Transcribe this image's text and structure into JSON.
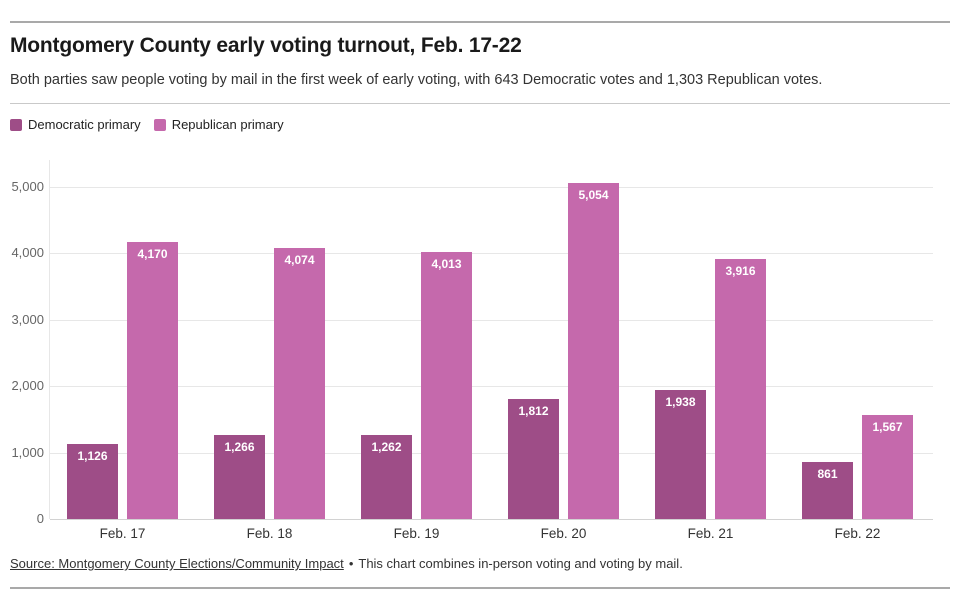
{
  "header": {
    "title": "Montgomery County early voting turnout, Feb. 17-22",
    "subtitle": "Both parties saw people voting by mail in the first week of early voting, with 643 Democratic votes and 1,303 Republican votes."
  },
  "legend": [
    {
      "label": "Democratic primary",
      "color": "#9e4d87"
    },
    {
      "label": "Republican primary",
      "color": "#c569ac"
    }
  ],
  "chart_data": {
    "type": "bar",
    "title": "Montgomery County early voting turnout, Feb. 17-22",
    "categories": [
      "Feb. 17",
      "Feb. 18",
      "Feb. 19",
      "Feb. 20",
      "Feb. 21",
      "Feb. 22"
    ],
    "series": [
      {
        "name": "Democratic primary",
        "color": "#9e4d87",
        "values": [
          1126,
          1266,
          1262,
          1812,
          1938,
          861
        ],
        "labels": [
          "1,126",
          "1,266",
          "1,262",
          "1,812",
          "1,938",
          "861"
        ]
      },
      {
        "name": "Republican primary",
        "color": "#c569ac",
        "values": [
          4170,
          4074,
          4013,
          5054,
          3916,
          1567
        ],
        "labels": [
          "4,170",
          "4,074",
          "4,013",
          "5,054",
          "3,916",
          "1,567"
        ]
      }
    ],
    "ylim": [
      0,
      5000
    ],
    "yticks": [
      0,
      1000,
      2000,
      3000,
      4000,
      5000
    ],
    "ytick_labels": [
      "0",
      "1,000",
      "2,000",
      "3,000",
      "4,000",
      "5,000"
    ],
    "grid": true,
    "legend_position": "top-left",
    "xlabel": "",
    "ylabel": ""
  },
  "footer": {
    "source_label": "Source: Montgomery County Elections/Community Impact",
    "separator": "•",
    "note": "This chart combines in-person voting and voting by mail."
  }
}
